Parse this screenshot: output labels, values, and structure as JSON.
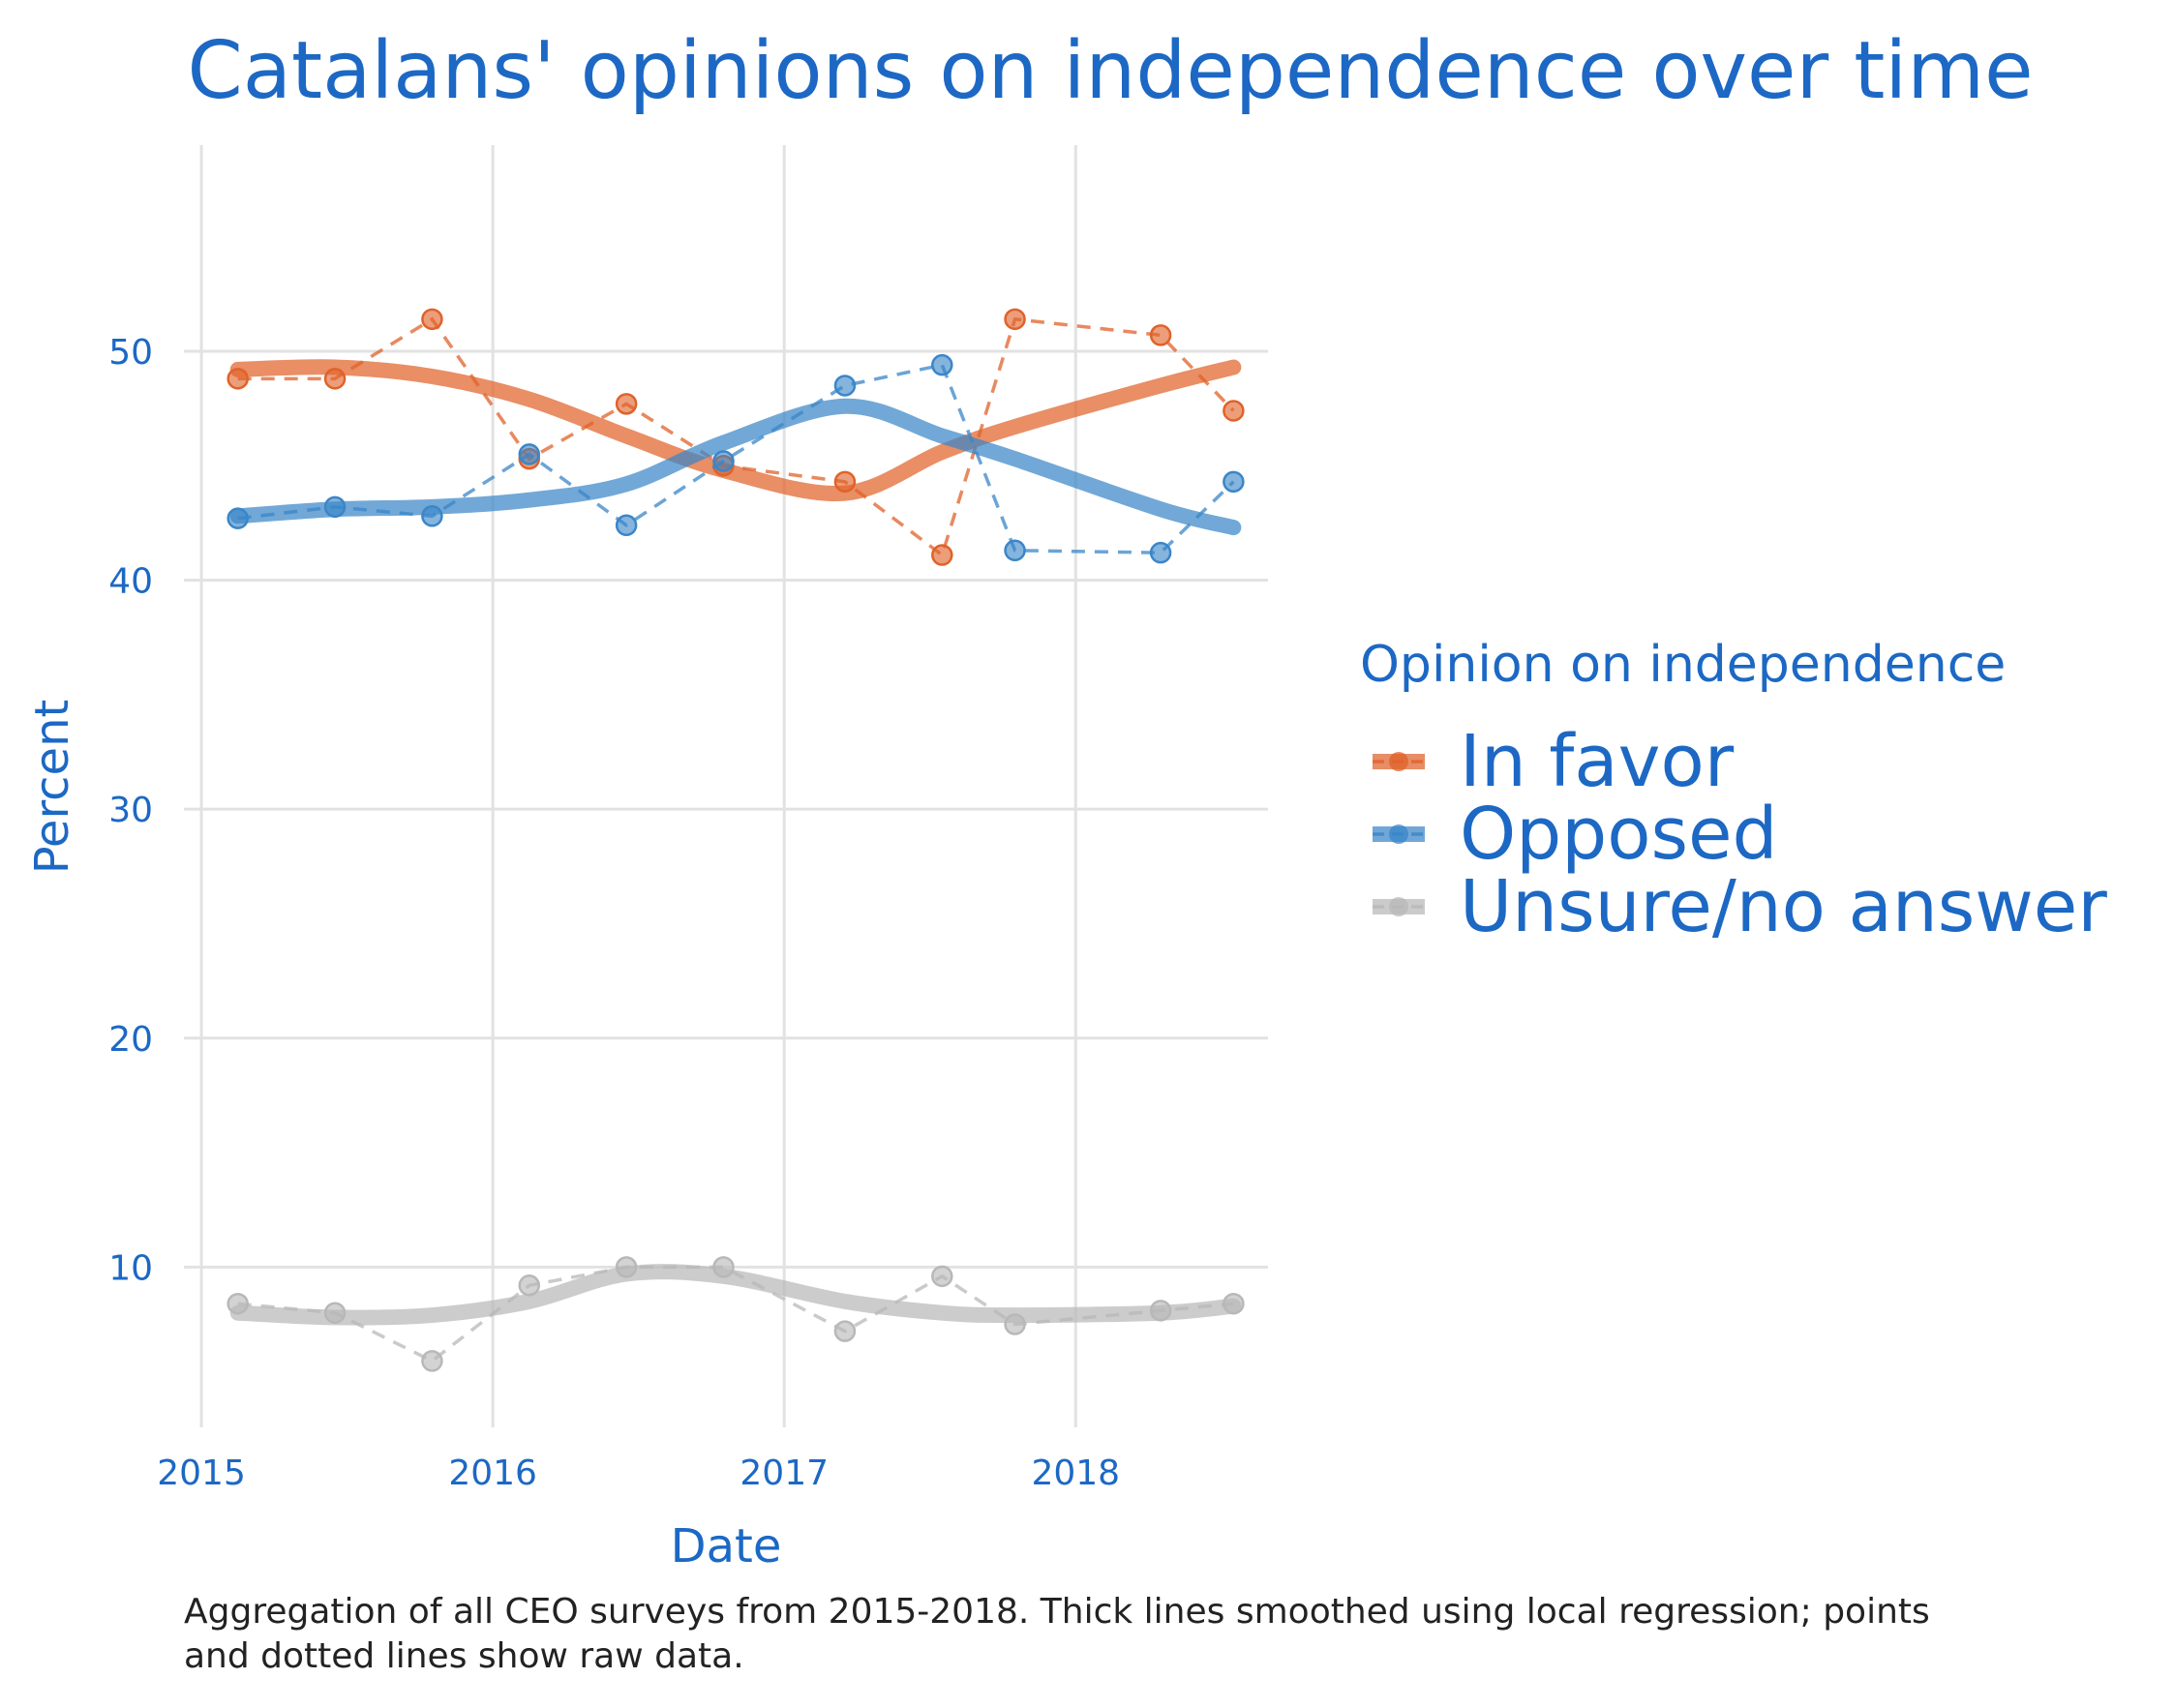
{
  "chart_data": {
    "type": "line",
    "title": "Catalans' opinions on independence over time",
    "xlabel": "Date",
    "ylabel": "Percent",
    "x_ticks": [
      "2015",
      "2016",
      "2017",
      "2018"
    ],
    "y_ticks": [
      "10",
      "20",
      "30",
      "40",
      "50"
    ],
    "xlim": [
      2014.94,
      2018.66
    ],
    "ylim": [
      3,
      59
    ],
    "grid": true,
    "legend": {
      "title": "Opinion on independence",
      "placement": "right"
    },
    "caption_line1": "Aggregation of all CEO surveys from 2015-2018. Thick lines smoothed using local regression; points",
    "caption_line2": "and dotted lines show raw data.",
    "series": [
      {
        "name": "In favor",
        "color": "#e0622a",
        "raw": [
          [
            "2015-02",
            48.8
          ],
          [
            "2015-06",
            48.8
          ],
          [
            "2015-10",
            51.4
          ],
          [
            "2016-02",
            45.3
          ],
          [
            "2016-06",
            47.7
          ],
          [
            "2016-10",
            45.0
          ],
          [
            "2017-03",
            44.3
          ],
          [
            "2017-07",
            41.1
          ],
          [
            "2017-10",
            51.4
          ],
          [
            "2018-04",
            50.7
          ],
          [
            "2018-07",
            47.4
          ]
        ],
        "smooth": [
          [
            "2015-02",
            49.2
          ],
          [
            "2015-06",
            49.3
          ],
          [
            "2015-10",
            48.9
          ],
          [
            "2016-02",
            47.9
          ],
          [
            "2016-06",
            46.3
          ],
          [
            "2016-10",
            44.8
          ],
          [
            "2017-03",
            43.8
          ],
          [
            "2017-07",
            45.6
          ],
          [
            "2017-10",
            46.7
          ],
          [
            "2018-04",
            48.5
          ],
          [
            "2018-07",
            49.3
          ]
        ]
      },
      {
        "name": "Opposed",
        "color": "#3a86c8",
        "raw": [
          [
            "2015-02",
            42.7
          ],
          [
            "2015-06",
            43.2
          ],
          [
            "2015-10",
            42.8
          ],
          [
            "2016-02",
            45.5
          ],
          [
            "2016-06",
            42.4
          ],
          [
            "2016-10",
            45.2
          ],
          [
            "2017-03",
            48.5
          ],
          [
            "2017-07",
            49.4
          ],
          [
            "2017-10",
            41.3
          ],
          [
            "2018-04",
            41.2
          ],
          [
            "2018-07",
            44.3
          ]
        ],
        "smooth": [
          [
            "2015-02",
            42.8
          ],
          [
            "2015-06",
            43.1
          ],
          [
            "2015-10",
            43.2
          ],
          [
            "2016-02",
            43.5
          ],
          [
            "2016-06",
            44.2
          ],
          [
            "2016-10",
            46.0
          ],
          [
            "2017-03",
            47.6
          ],
          [
            "2017-07",
            46.3
          ],
          [
            "2017-10",
            45.3
          ],
          [
            "2018-04",
            43.1
          ],
          [
            "2018-07",
            42.3
          ]
        ]
      },
      {
        "name": "Unsure/no answer",
        "color": "#b8b8b8",
        "raw": [
          [
            "2015-02",
            8.4
          ],
          [
            "2015-06",
            8.0
          ],
          [
            "2015-10",
            5.9
          ],
          [
            "2016-02",
            9.2
          ],
          [
            "2016-06",
            10.0
          ],
          [
            "2016-10",
            10.0
          ],
          [
            "2017-03",
            7.2
          ],
          [
            "2017-07",
            9.6
          ],
          [
            "2017-10",
            7.5
          ],
          [
            "2018-04",
            8.1
          ],
          [
            "2018-07",
            8.4
          ]
        ],
        "smooth": [
          [
            "2015-02",
            8.0
          ],
          [
            "2015-06",
            7.8
          ],
          [
            "2015-10",
            7.9
          ],
          [
            "2016-02",
            8.5
          ],
          [
            "2016-06",
            9.7
          ],
          [
            "2016-10",
            9.6
          ],
          [
            "2017-03",
            8.5
          ],
          [
            "2017-07",
            8.0
          ],
          [
            "2017-10",
            7.9
          ],
          [
            "2018-04",
            8.0
          ],
          [
            "2018-07",
            8.3
          ]
        ]
      }
    ]
  }
}
